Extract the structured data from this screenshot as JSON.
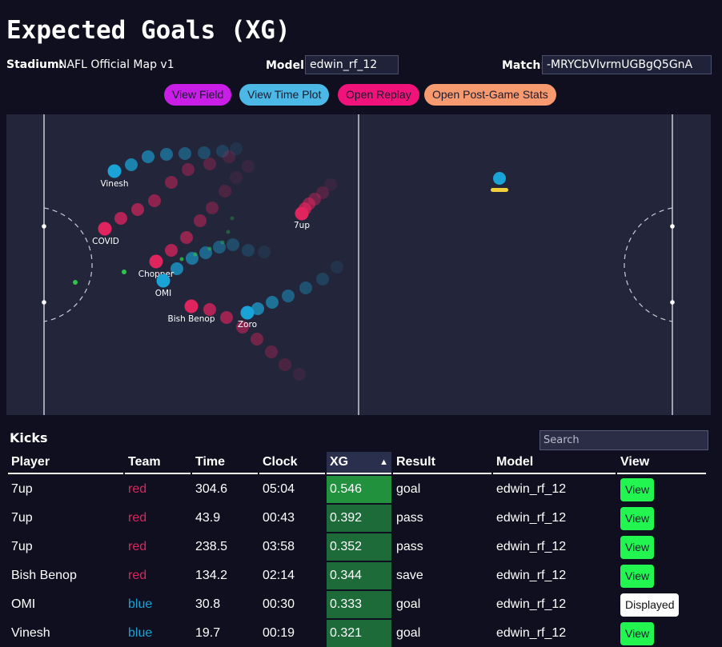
{
  "title": "Expected Goals (XG)",
  "stadium": {
    "label": "Stadium:",
    "value": "NAFL Official Map v1"
  },
  "model": {
    "label": "Model:",
    "value": "edwin_rf_12"
  },
  "match": {
    "label": "Match:",
    "value": "-MRYCbVlvrmUGBgQ5GnA"
  },
  "buttons": {
    "view_field": "View Field",
    "view_time_plot": "View Time Plot",
    "open_replay": "Open Replay",
    "open_post_game": "Open Post-Game Stats"
  },
  "colors": {
    "red_team": "#e0245e",
    "blue_team": "#1aa3d6",
    "view_field_btn": "#c81ee6",
    "view_time_btn": "#4cb8e6",
    "open_replay_btn": "#f0147a",
    "post_game_btn": "#f79a70"
  },
  "field": {
    "players": [
      {
        "name": "Vinesh",
        "team": "blue"
      },
      {
        "name": "COVID",
        "team": "red"
      },
      {
        "name": "Chopper",
        "team": "red"
      },
      {
        "name": "OMI",
        "team": "blue"
      },
      {
        "name": "Bish Benop",
        "team": "red"
      },
      {
        "name": "Zoro",
        "team": "blue"
      },
      {
        "name": "7up",
        "team": "red"
      }
    ]
  },
  "kicks": {
    "title": "Kicks",
    "search_placeholder": "Search",
    "sort_arrow": "▲",
    "columns": [
      "Player",
      "Team",
      "Time",
      "Clock",
      "XG",
      "Result",
      "Model",
      "View"
    ],
    "rows": [
      {
        "player": "7up",
        "team": "red",
        "time": "304.6",
        "clock": "05:04",
        "xg": "0.546",
        "result": "goal",
        "model": "edwin_rf_12",
        "view": "View"
      },
      {
        "player": "7up",
        "team": "red",
        "time": "43.9",
        "clock": "00:43",
        "xg": "0.392",
        "result": "pass",
        "model": "edwin_rf_12",
        "view": "View"
      },
      {
        "player": "7up",
        "team": "red",
        "time": "238.5",
        "clock": "03:58",
        "xg": "0.352",
        "result": "pass",
        "model": "edwin_rf_12",
        "view": "View"
      },
      {
        "player": "Bish Benop",
        "team": "red",
        "time": "134.2",
        "clock": "02:14",
        "xg": "0.344",
        "result": "save",
        "model": "edwin_rf_12",
        "view": "View"
      },
      {
        "player": "OMI",
        "team": "blue",
        "time": "30.8",
        "clock": "00:30",
        "xg": "0.333",
        "result": "goal",
        "model": "edwin_rf_12",
        "view": "Displayed"
      },
      {
        "player": "Vinesh",
        "team": "blue",
        "time": "19.7",
        "clock": "00:19",
        "xg": "0.321",
        "result": "goal",
        "model": "edwin_rf_12",
        "view": "View"
      }
    ]
  }
}
